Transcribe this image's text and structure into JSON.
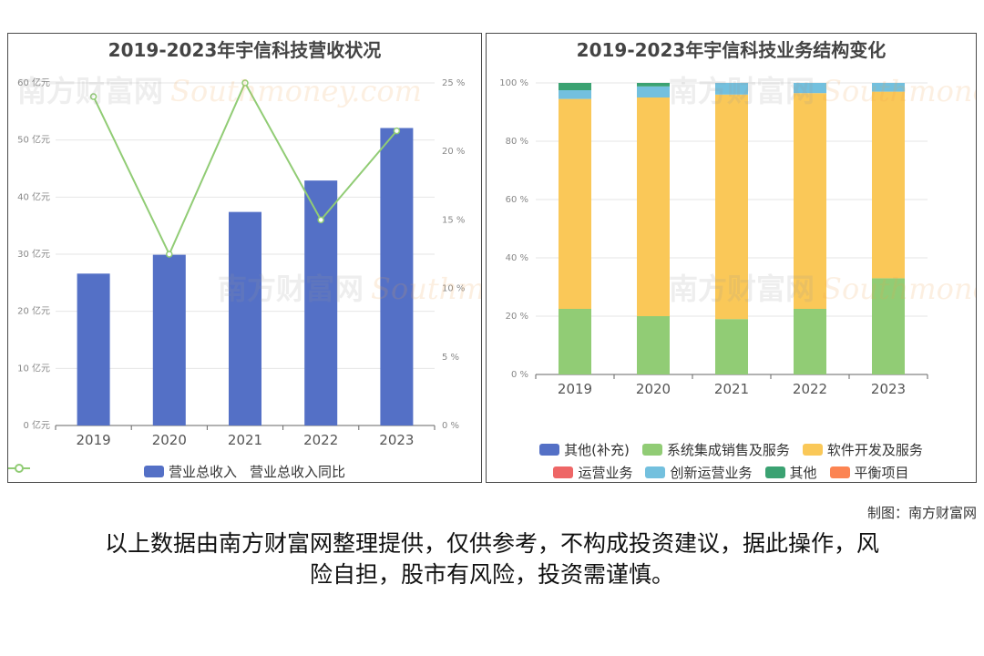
{
  "chart_data": [
    {
      "type": "bar",
      "title": "2019-2023年宇信科技营收状况",
      "categories": [
        "2019",
        "2020",
        "2021",
        "2022",
        "2023"
      ],
      "series": [
        {
          "name": "营业总收入",
          "type": "bar",
          "axis": "left",
          "values": [
            26.6,
            29.9,
            37.4,
            42.9,
            52.1
          ],
          "color": "#5470c6"
        },
        {
          "name": "营业总收入同比",
          "type": "line",
          "axis": "right",
          "values": [
            24.0,
            12.5,
            25.0,
            15.0,
            21.5
          ],
          "color": "#91cc75"
        }
      ],
      "y_left": {
        "ticks": [
          "0 亿元",
          "10 亿元",
          "20 亿元",
          "30 亿元",
          "40 亿元",
          "50 亿元",
          "60 亿元"
        ],
        "range": [
          0,
          60
        ]
      },
      "y_right": {
        "ticks": [
          "0 %",
          "5 %",
          "10 %",
          "15 %",
          "20 %",
          "25 %"
        ],
        "range": [
          0,
          25
        ]
      },
      "legend": "bottom"
    },
    {
      "type": "bar",
      "stacked": true,
      "title": "2019-2023年宇信科技业务结构变化",
      "categories": [
        "2019",
        "2020",
        "2021",
        "2022",
        "2023"
      ],
      "series": [
        {
          "name": "其他(补充)",
          "color": "#5470c6",
          "values": [
            0,
            0,
            0,
            0,
            0
          ]
        },
        {
          "name": "系统集成销售及服务",
          "color": "#91cc75",
          "values": [
            22.5,
            20.0,
            19.0,
            22.5,
            33.0
          ]
        },
        {
          "name": "软件开发及服务",
          "color": "#fac858",
          "values": [
            72.0,
            75.0,
            77.0,
            74.0,
            64.0
          ]
        },
        {
          "name": "运营业务",
          "color": "#ee6666",
          "values": [
            0,
            0,
            0,
            0,
            0
          ]
        },
        {
          "name": "创新运营业务",
          "color": "#73c0de",
          "values": [
            3.0,
            3.8,
            4.0,
            3.5,
            3.0
          ]
        },
        {
          "name": "其他",
          "color": "#3ba272",
          "values": [
            2.5,
            1.2,
            0,
            0,
            0
          ]
        },
        {
          "name": "平衡项目",
          "color": "#fc8452",
          "values": [
            0,
            0,
            0,
            0,
            0
          ]
        }
      ],
      "y_axis": {
        "ticks": [
          "0 %",
          "20 %",
          "40 %",
          "60 %",
          "80 %",
          "100 %"
        ],
        "range": [
          0,
          100
        ]
      },
      "legend": "bottom"
    }
  ],
  "watermark": {
    "cn": "南方财富网",
    "en": "Southmoney.com"
  },
  "credit": "制图：南方财富网",
  "disclaimer_line1": "以上数据由南方财富网整理提供，仅供参考，不构成投资建议，据此操作，风",
  "disclaimer_line2": "险自担，股市有风险，投资需谨慎。"
}
